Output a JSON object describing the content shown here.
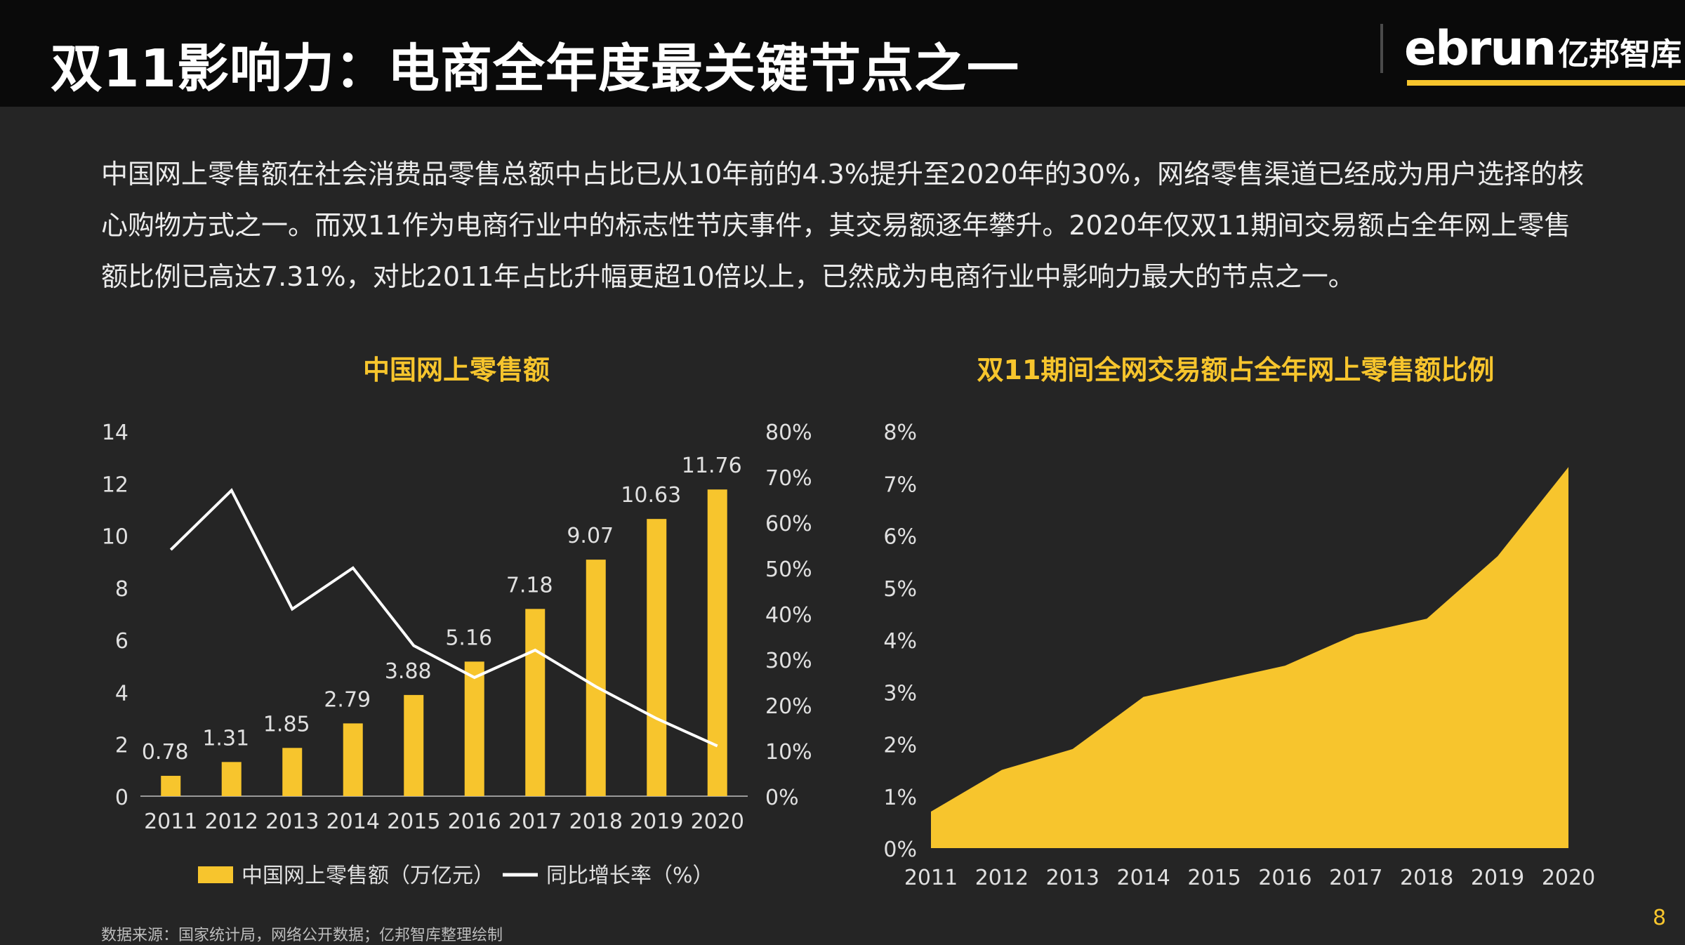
{
  "header": {
    "title": "双11影响力：电商全年度最关键节点之一",
    "logo_en": "ebrun",
    "logo_cn": "亿邦智库"
  },
  "intro_text": "中国网上零售额在社会消费品零售总额中占比已从10年前的4.3%提升至2020年的30%，网络零售渠道已经成为用户选择的核心购物方式之一。而双11作为电商行业中的标志性节庆事件，其交易额逐年攀升。2020年仅双11期间交易额占全年网上零售额比例已高达7.31%，对比2011年占比升幅更超10倍以上，已然成为电商行业中影响力最大的节点之一。",
  "footer": {
    "source": "数据来源：国家统计局，网络公开数据；亿邦智库整理绘制",
    "page_number": "8"
  },
  "colors": {
    "accent": "#f7c52d",
    "background": "#252525",
    "header_bg": "#0a0a0a",
    "line": "#ffffff"
  },
  "chart_data": [
    {
      "type": "bar+line",
      "title": "中国网上零售额",
      "categories": [
        "2011",
        "2012",
        "2013",
        "2014",
        "2015",
        "2016",
        "2017",
        "2018",
        "2019",
        "2020"
      ],
      "series": [
        {
          "name": "中国网上零售额（万亿元）",
          "type": "bar",
          "axis": "left",
          "values": [
            0.78,
            1.31,
            1.85,
            2.79,
            3.88,
            5.16,
            7.18,
            9.07,
            10.63,
            11.76
          ]
        },
        {
          "name": "同比增长率（%）",
          "type": "line",
          "axis": "right",
          "values": [
            54,
            67,
            41,
            50,
            33,
            26,
            32,
            24,
            17,
            11
          ]
        }
      ],
      "y_left": {
        "min": 0,
        "max": 14,
        "ticks": [
          "0",
          "2",
          "4",
          "6",
          "8",
          "10",
          "12",
          "14"
        ]
      },
      "y_right": {
        "min": 0,
        "max": 80,
        "ticks": [
          "0%",
          "10%",
          "20%",
          "30%",
          "40%",
          "50%",
          "60%",
          "70%",
          "80%"
        ]
      },
      "legend": "bottom",
      "grid": false
    },
    {
      "type": "area",
      "title": "双11期间全网交易额占全年网上零售额比例",
      "categories": [
        "2011",
        "2012",
        "2013",
        "2014",
        "2015",
        "2016",
        "2017",
        "2018",
        "2019",
        "2020"
      ],
      "values": [
        0.7,
        1.5,
        1.9,
        2.9,
        3.2,
        3.5,
        4.1,
        4.4,
        5.6,
        7.31
      ],
      "unit": "%",
      "y": {
        "min": 0,
        "max": 8,
        "ticks": [
          "0%",
          "1%",
          "2%",
          "3%",
          "4%",
          "5%",
          "6%",
          "7%",
          "8%"
        ]
      },
      "grid": false
    }
  ]
}
